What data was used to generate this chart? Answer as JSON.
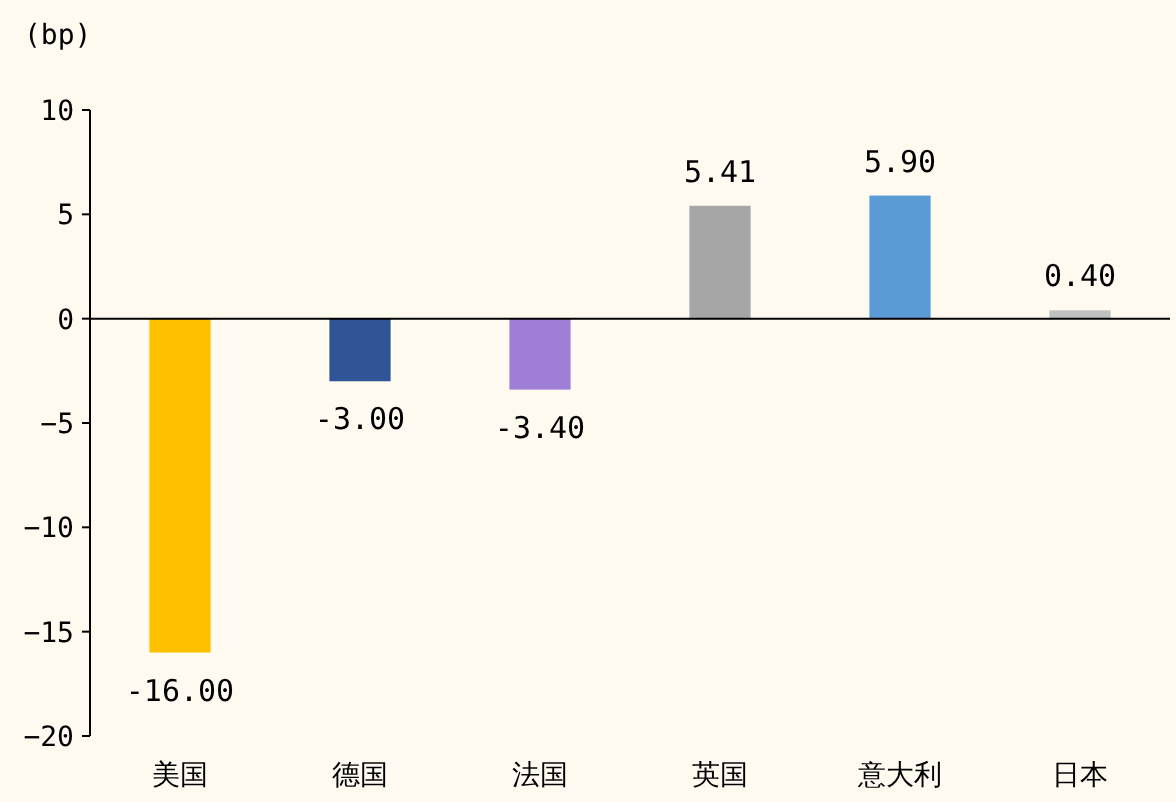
{
  "chart_data": {
    "type": "bar",
    "ylabel": "(bp)",
    "categories": [
      "美国",
      "德国",
      "法国",
      "英国",
      "意大利",
      "日本"
    ],
    "values": [
      -16.0,
      -3.0,
      -3.4,
      5.41,
      5.9,
      0.4
    ],
    "colors": [
      "#ffc000",
      "#2f5597",
      "#9f7fd6",
      "#a6a6a6",
      "#5b9bd5",
      "#bfbfbf"
    ],
    "value_labels": [
      "-16.00",
      "-3.00",
      "-3.40",
      "5.41",
      "5.90",
      "0.40"
    ],
    "ylim": [
      -20,
      10
    ],
    "yticks": [
      {
        "value": -20,
        "label": "−20"
      },
      {
        "value": -15,
        "label": "−15"
      },
      {
        "value": -10,
        "label": "−10"
      },
      {
        "value": -5,
        "label": "−5"
      },
      0,
      5,
      10
    ]
  }
}
